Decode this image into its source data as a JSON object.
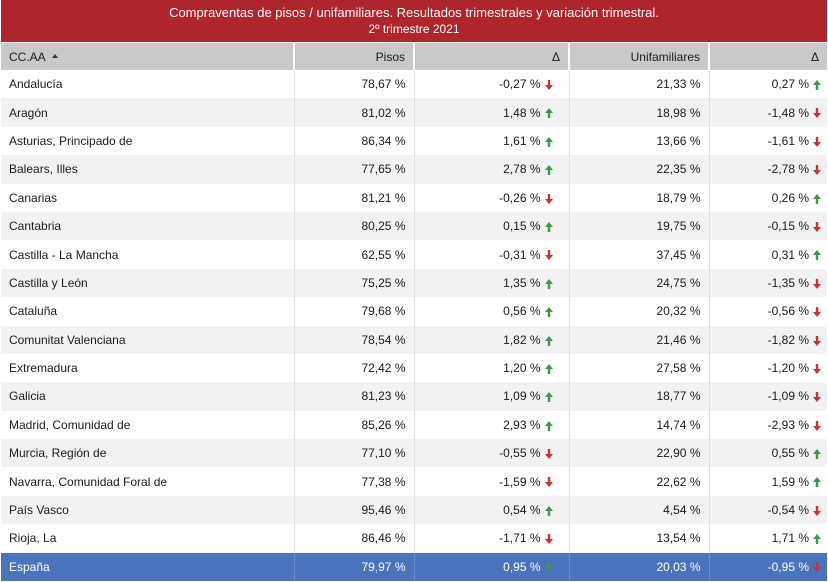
{
  "title": {
    "line1": "Compraventas de pisos / unifamiliares. Resultados trimestrales  y variación trimestral.",
    "line2": "2º trimestre 2021"
  },
  "colors": {
    "title_bg": "#b0252c",
    "header_bg": "#c9c9c9",
    "total_bg": "#4a73be",
    "up_arrow": "#3a9a4a",
    "down_arrow": "#d03030"
  },
  "header": {
    "ccaa": "CC.AA",
    "pisos": "Pisos",
    "delta_pisos": "Δ",
    "unifamiliares": "Unifamiliares",
    "delta_unifamiliares": "Δ"
  },
  "rows": [
    {
      "ccaa": "Andalucía",
      "pisos": "78,67 %",
      "dp": "-0,27 %",
      "dp_dir": "down",
      "uni": "21,33 %",
      "du": "0,27 %",
      "du_dir": "up"
    },
    {
      "ccaa": "Aragón",
      "pisos": "81,02 %",
      "dp": "1,48 %",
      "dp_dir": "up",
      "uni": "18,98 %",
      "du": "-1,48 %",
      "du_dir": "down"
    },
    {
      "ccaa": "Asturias, Principado de",
      "pisos": "86,34 %",
      "dp": "1,61 %",
      "dp_dir": "up",
      "uni": "13,66 %",
      "du": "-1,61 %",
      "du_dir": "down"
    },
    {
      "ccaa": "Balears, Illes",
      "pisos": "77,65 %",
      "dp": "2,78 %",
      "dp_dir": "up",
      "uni": "22,35 %",
      "du": "-2,78 %",
      "du_dir": "down"
    },
    {
      "ccaa": "Canarias",
      "pisos": "81,21 %",
      "dp": "-0,26 %",
      "dp_dir": "down",
      "uni": "18,79 %",
      "du": "0,26 %",
      "du_dir": "up"
    },
    {
      "ccaa": "Cantabria",
      "pisos": "80,25 %",
      "dp": "0,15 %",
      "dp_dir": "up",
      "uni": "19,75 %",
      "du": "-0,15 %",
      "du_dir": "down"
    },
    {
      "ccaa": "Castilla - La Mancha",
      "pisos": "62,55 %",
      "dp": "-0,31 %",
      "dp_dir": "down",
      "uni": "37,45 %",
      "du": "0,31 %",
      "du_dir": "up"
    },
    {
      "ccaa": "Castilla y León",
      "pisos": "75,25 %",
      "dp": "1,35 %",
      "dp_dir": "up",
      "uni": "24,75 %",
      "du": "-1,35 %",
      "du_dir": "down"
    },
    {
      "ccaa": "Cataluña",
      "pisos": "79,68 %",
      "dp": "0,56 %",
      "dp_dir": "up",
      "uni": "20,32 %",
      "du": "-0,56 %",
      "du_dir": "down"
    },
    {
      "ccaa": "Comunitat Valenciana",
      "pisos": "78,54 %",
      "dp": "1,82 %",
      "dp_dir": "up",
      "uni": "21,46 %",
      "du": "-1,82 %",
      "du_dir": "down"
    },
    {
      "ccaa": "Extremadura",
      "pisos": "72,42 %",
      "dp": "1,20 %",
      "dp_dir": "up",
      "uni": "27,58 %",
      "du": "-1,20 %",
      "du_dir": "down"
    },
    {
      "ccaa": "Galicia",
      "pisos": "81,23 %",
      "dp": "1,09 %",
      "dp_dir": "up",
      "uni": "18,77 %",
      "du": "-1,09 %",
      "du_dir": "down"
    },
    {
      "ccaa": "Madrid, Comunidad de",
      "pisos": "85,26 %",
      "dp": "2,93 %",
      "dp_dir": "up",
      "uni": "14,74 %",
      "du": "-2,93 %",
      "du_dir": "down"
    },
    {
      "ccaa": "Murcia, Región de",
      "pisos": "77,10 %",
      "dp": "-0,55 %",
      "dp_dir": "down",
      "uni": "22,90 %",
      "du": "0,55 %",
      "du_dir": "up"
    },
    {
      "ccaa": "Navarra, Comunidad Foral de",
      "pisos": "77,38 %",
      "dp": "-1,59 %",
      "dp_dir": "down",
      "uni": "22,62 %",
      "du": "1,59 %",
      "du_dir": "up"
    },
    {
      "ccaa": "País Vasco",
      "pisos": "95,46 %",
      "dp": "0,54 %",
      "dp_dir": "up",
      "uni": "4,54 %",
      "du": "-0,54 %",
      "du_dir": "down"
    },
    {
      "ccaa": "Rioja, La",
      "pisos": "86,46 %",
      "dp": "-1,71 %",
      "dp_dir": "down",
      "uni": "13,54 %",
      "du": "1,71 %",
      "du_dir": "up"
    }
  ],
  "total": {
    "ccaa": "España",
    "pisos": "79,97 %",
    "dp": "0,95 %",
    "dp_dir": "up",
    "uni": "20,03 %",
    "du": "-0,95 %",
    "du_dir": "down"
  }
}
